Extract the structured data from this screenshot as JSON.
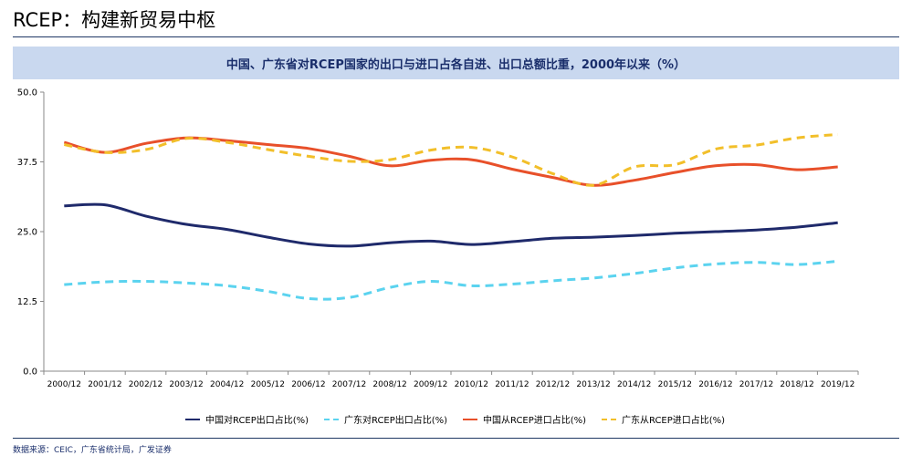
{
  "page": {
    "title": "RCEP：构建新贸易中枢",
    "banner": "中国、广东省对RCEP国家的出口与进口占各自进、出口总额比重，2000年以来（%）",
    "source": "数据来源：CEIC，广东省统计局，广发证券"
  },
  "chart_data": {
    "type": "line",
    "title": "中国、广东省对RCEP国家的出口与进口占各自进、出口总额比重，2000年以来（%）",
    "xlabel": "",
    "ylabel": "",
    "categories": [
      "2000/12",
      "2001/12",
      "2002/12",
      "2003/12",
      "2004/12",
      "2005/12",
      "2006/12",
      "2007/12",
      "2008/12",
      "2009/12",
      "2010/12",
      "2011/12",
      "2012/12",
      "2013/12",
      "2014/12",
      "2015/12",
      "2016/12",
      "2017/12",
      "2018/12",
      "2019/12"
    ],
    "ylim": [
      0,
      50
    ],
    "yticks": [
      "0.0",
      "12.5",
      "25.0",
      "37.5",
      "50.0"
    ],
    "grid": false,
    "legend_position": "bottom",
    "series": [
      {
        "name": "中国对RCEP出口占比(%)",
        "color": "#1f2a6b",
        "dash": false,
        "values": [
          29.6,
          29.8,
          27.8,
          26.3,
          25.4,
          24.0,
          22.8,
          22.4,
          23.0,
          23.3,
          22.7,
          23.2,
          23.8,
          24.0,
          24.3,
          24.7,
          25.0,
          25.3,
          25.8,
          26.6
        ]
      },
      {
        "name": "广东对RCEP出口占比(%)",
        "color": "#5bd3ef",
        "dash": true,
        "values": [
          15.5,
          16.0,
          16.1,
          15.8,
          15.3,
          14.3,
          13.0,
          13.2,
          15.0,
          16.1,
          15.3,
          15.6,
          16.2,
          16.7,
          17.5,
          18.5,
          19.2,
          19.5,
          19.1,
          19.7
        ]
      },
      {
        "name": "中国从RCEP进口占比(%)",
        "color": "#e8502a",
        "dash": false,
        "values": [
          41.0,
          39.2,
          40.8,
          41.8,
          41.3,
          40.6,
          39.9,
          38.5,
          36.8,
          37.8,
          37.9,
          36.2,
          34.7,
          33.3,
          34.2,
          35.6,
          36.8,
          37.0,
          36.1,
          36.6
        ]
      },
      {
        "name": "广东从RCEP进口占比(%)",
        "color": "#f2bf2a",
        "dash": true,
        "values": [
          40.6,
          39.2,
          39.7,
          41.7,
          41.0,
          39.7,
          38.5,
          37.6,
          37.9,
          39.6,
          40.1,
          38.4,
          35.4,
          33.3,
          36.6,
          37.0,
          39.8,
          40.5,
          41.8,
          42.4
        ]
      }
    ]
  }
}
